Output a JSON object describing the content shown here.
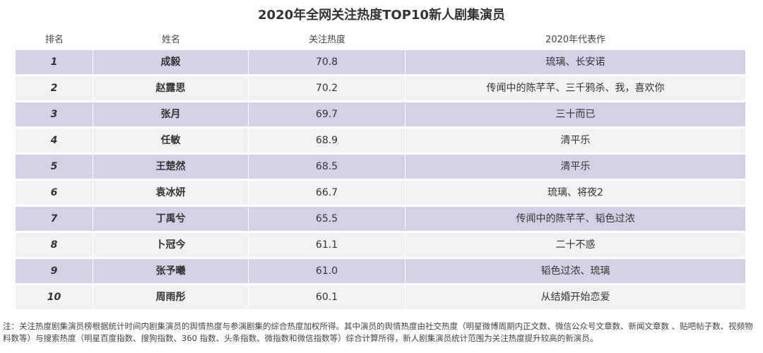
{
  "title": "2020年全网关注热度TOP10新人剧集演员",
  "columns": {
    "rank": "排名",
    "name": "姓名",
    "heat": "关注热度",
    "works": "2020年代表作"
  },
  "rows": [
    {
      "rank": "1",
      "name": "成毅",
      "heat": "70.8",
      "works": "琉璃、长安诺"
    },
    {
      "rank": "2",
      "name": "赵露思",
      "heat": "70.2",
      "works": "传闻中的陈芊芊、三千鸦杀、我，喜欢你"
    },
    {
      "rank": "3",
      "name": "张月",
      "heat": "69.7",
      "works": "三十而已"
    },
    {
      "rank": "4",
      "name": "任敏",
      "heat": "68.9",
      "works": "清平乐"
    },
    {
      "rank": "5",
      "name": "王楚然",
      "heat": "68.5",
      "works": "清平乐"
    },
    {
      "rank": "6",
      "name": "袁冰妍",
      "heat": "66.7",
      "works": "琉璃、将夜2"
    },
    {
      "rank": "7",
      "name": "丁禹兮",
      "heat": "65.5",
      "works": "传闻中的陈芊芊、韬色过浓"
    },
    {
      "rank": "8",
      "name": "卜冠今",
      "heat": "61.1",
      "works": "二十不惑"
    },
    {
      "rank": "9",
      "name": "张予曦",
      "heat": "61.0",
      "works": "韬色过浓、琉璃"
    },
    {
      "rank": "10",
      "name": "周雨彤",
      "heat": "60.1",
      "works": "从结婚开始恋爱"
    }
  ],
  "note": "注：关注热度剧集演员榜根据统计时间内剧集演员的舆情热度与参演剧集的综合热度加权所得。其中演员的舆情热度由社交热度（明星微博周期内正文数、微信公众号文章数、新闻文章数 、贴吧帖子数、视频物料数等）与搜索热度（明星百度指数、搜狗指数、360 指数、头条指数、微指数和微信指数等）综合计算所得，新人剧集演员统计范围为关注热度提升较高的新演员。",
  "colors": {
    "row_odd": "#d5d0e6",
    "row_even": "#f2f2f2"
  }
}
